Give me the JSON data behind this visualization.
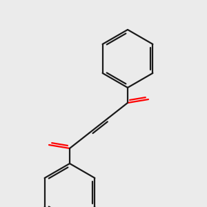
{
  "background_color": "#ebebeb",
  "line_color": "#1a1a1a",
  "oxygen_color": "#ff0000",
  "line_width": 1.6,
  "dpi": 100,
  "figsize": [
    3.0,
    3.0
  ]
}
